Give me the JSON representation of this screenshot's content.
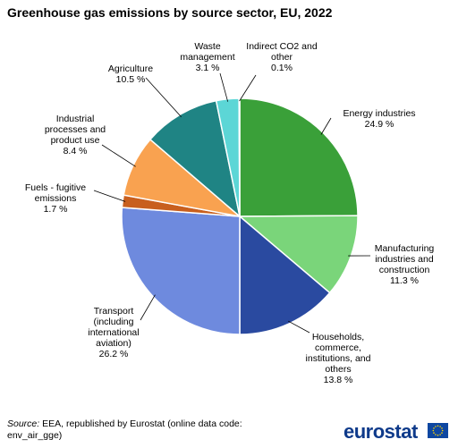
{
  "chart_data": {
    "type": "pie",
    "title": "Greenhouse gas emissions by source sector, EU, 2022",
    "slices": [
      {
        "label": [
          "Energy industries",
          "24.9 %"
        ],
        "value": 24.9,
        "color": "#3aa039"
      },
      {
        "label": [
          "Manufacturing",
          "industries and",
          "construction",
          "11.3 %"
        ],
        "value": 11.3,
        "color": "#7ad57a"
      },
      {
        "label": [
          "Households,",
          "commerce,",
          "institutions, and",
          "others",
          "13.8 %"
        ],
        "value": 13.8,
        "color": "#2a4aa0"
      },
      {
        "label": [
          "Transport",
          "(including",
          "international",
          "aviation)",
          "26.2 %"
        ],
        "value": 26.2,
        "color": "#6e8ade"
      },
      {
        "label": [
          "Fuels - fugitive",
          "emissions",
          "1.7 %"
        ],
        "value": 1.7,
        "color": "#c85f1e"
      },
      {
        "label": [
          "Industrial",
          "processes and",
          "product use",
          "8.4 %"
        ],
        "value": 8.4,
        "color": "#f9a250"
      },
      {
        "label": [
          "Agriculture",
          "10.5 %"
        ],
        "value": 10.5,
        "color": "#1f8484"
      },
      {
        "label": [
          "Waste",
          "management",
          "3.1 %"
        ],
        "value": 3.1,
        "color": "#5cd6d6"
      },
      {
        "label": [
          "Indirect CO2 and",
          "other",
          "0.1%"
        ],
        "value": 0.1,
        "color": "#2a4aa0"
      }
    ]
  },
  "source": {
    "lead": "Source:",
    "text": "EEA, republished by Eurostat (online data code: env_air_gge)"
  },
  "brand": {
    "name": "eurostat",
    "flag_color": "#0e47a1",
    "star_color": "#ffd500"
  }
}
